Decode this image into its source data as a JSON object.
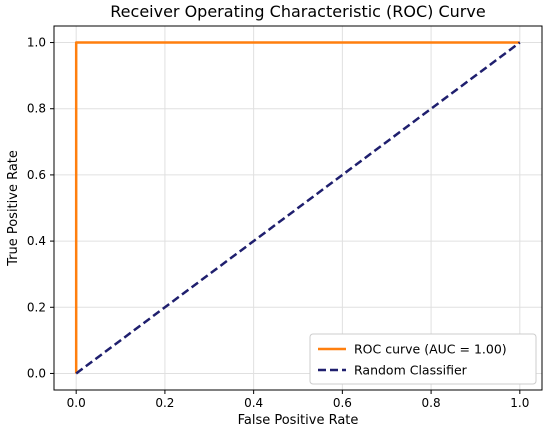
{
  "chart_data": {
    "type": "line",
    "title": "Receiver Operating Characteristic (ROC) Curve",
    "xlabel": "False Positive Rate",
    "ylabel": "True Positive Rate",
    "xlim": [
      -0.05,
      1.05
    ],
    "ylim": [
      -0.05,
      1.05
    ],
    "xticks": [
      0.0,
      0.2,
      0.4,
      0.6,
      0.8,
      1.0
    ],
    "yticks": [
      0.0,
      0.2,
      0.4,
      0.6,
      0.8,
      1.0
    ],
    "xtick_labels": [
      "0.0",
      "0.2",
      "0.4",
      "0.6",
      "0.8",
      "1.0"
    ],
    "ytick_labels": [
      "0.0",
      "0.2",
      "0.4",
      "0.6",
      "0.8",
      "1.0"
    ],
    "grid": true,
    "legend_position": "lower-right",
    "series": [
      {
        "name": "ROC curve (AUC = 1.00)",
        "color": "#ff7f0e",
        "style": "solid",
        "x": [
          0.0,
          0.0,
          1.0
        ],
        "y": [
          0.0,
          1.0,
          1.0
        ]
      },
      {
        "name": "Random Classifier",
        "color": "#1f1f6e",
        "style": "dashed",
        "x": [
          0.0,
          1.0
        ],
        "y": [
          0.0,
          1.0
        ]
      }
    ]
  }
}
